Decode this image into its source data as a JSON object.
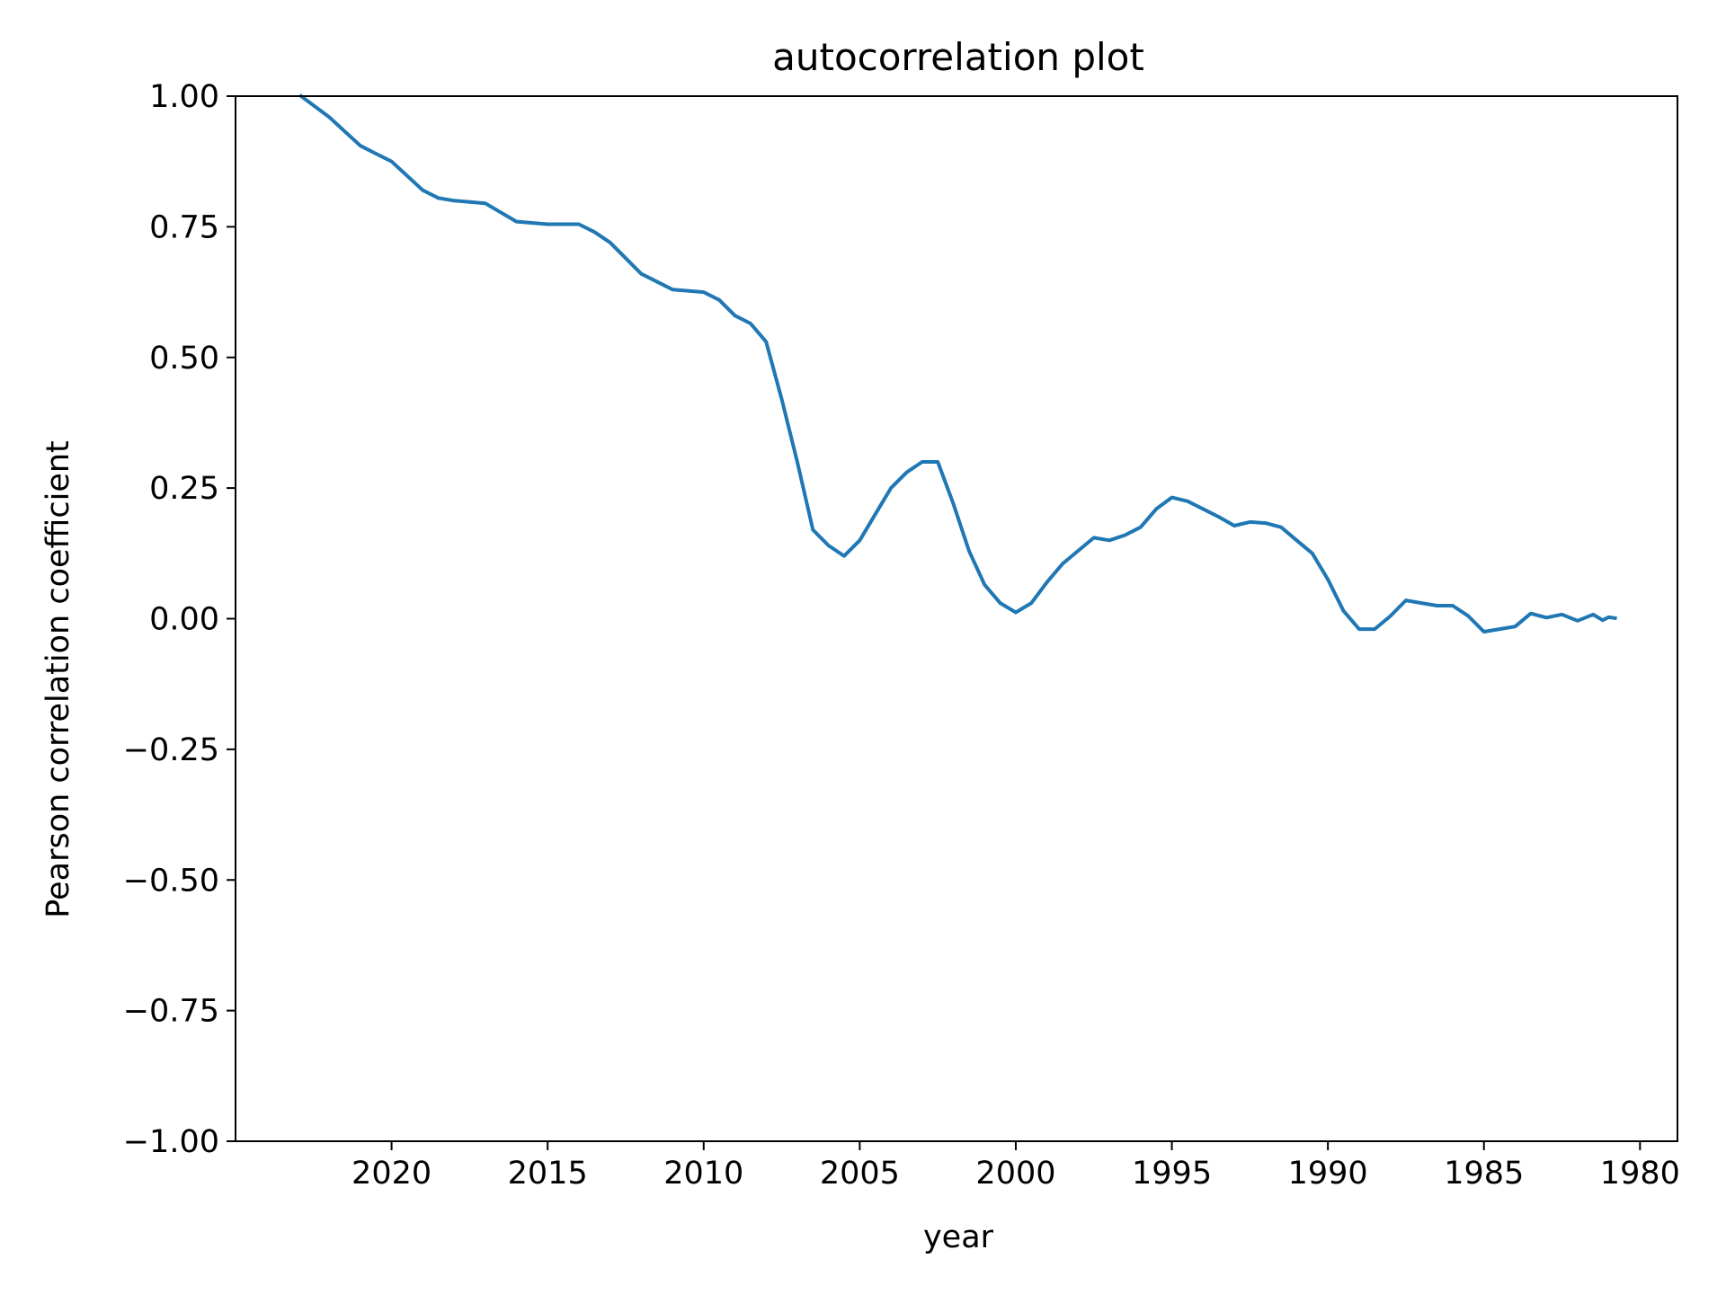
{
  "chart_data": {
    "type": "line",
    "title": "autocorrelation plot",
    "xlabel": "year",
    "ylabel": "Pearson correlation coefficient",
    "x_inverted": true,
    "xlim": [
      2025.0,
      1978.8
    ],
    "ylim": [
      -1.0,
      1.0
    ],
    "x_ticks": [
      2020,
      2015,
      2010,
      2005,
      2000,
      1995,
      1990,
      1985,
      1980
    ],
    "y_ticks": [
      1.0,
      0.75,
      0.5,
      0.25,
      0.0,
      -0.25,
      -0.5,
      -0.75,
      -1.0
    ],
    "x_tick_labels": [
      "2020",
      "2015",
      "2010",
      "2005",
      "2000",
      "1995",
      "1990",
      "1985",
      "1980"
    ],
    "y_tick_labels": [
      "1.00",
      "0.75",
      "0.50",
      "0.25",
      "0.00",
      "−0.25",
      "−0.50",
      "−0.75",
      "−1.00"
    ],
    "grid": false,
    "line_color": "#1f77b4",
    "series": [
      {
        "x": [
          2022.9,
          2022.0,
          2021.0,
          2020.5,
          2020.0,
          2019.0,
          2018.5,
          2018.0,
          2017.0,
          2016.0,
          2015.0,
          2014.0,
          2013.5,
          2013.0,
          2012.0,
          2011.0,
          2010.0,
          2009.5,
          2009.0,
          2008.5,
          2008.0,
          2007.5,
          2007.0,
          2006.5,
          2006.0,
          2005.5,
          2005.0,
          2004.5,
          2004.0,
          2003.5,
          2003.0,
          2002.5,
          2002.0,
          2001.5,
          2001.0,
          2000.5,
          2000.0,
          1999.5,
          1999.0,
          1998.5,
          1998.0,
          1997.5,
          1997.0,
          1996.5,
          1996.0,
          1995.5,
          1995.0,
          1994.5,
          1994.0,
          1993.5,
          1993.0,
          1992.5,
          1992.0,
          1991.5,
          1991.0,
          1990.5,
          1990.0,
          1989.5,
          1989.0,
          1988.5,
          1988.0,
          1987.5,
          1987.0,
          1986.5,
          1986.0,
          1985.5,
          1985.0,
          1984.5,
          1984.0,
          1983.5,
          1983.0,
          1982.5,
          1982.0,
          1981.5,
          1981.2,
          1981.0,
          1980.8
        ],
        "y": [
          1.0,
          0.96,
          0.905,
          0.89,
          0.875,
          0.82,
          0.805,
          0.8,
          0.795,
          0.76,
          0.755,
          0.755,
          0.74,
          0.72,
          0.66,
          0.63,
          0.625,
          0.61,
          0.58,
          0.565,
          0.53,
          0.42,
          0.3,
          0.17,
          0.14,
          0.12,
          0.15,
          0.2,
          0.25,
          0.28,
          0.3,
          0.3,
          0.22,
          0.13,
          0.065,
          0.03,
          0.012,
          0.03,
          0.07,
          0.105,
          0.13,
          0.155,
          0.15,
          0.16,
          0.175,
          0.21,
          0.232,
          0.225,
          0.21,
          0.195,
          0.178,
          0.185,
          0.183,
          0.175,
          0.15,
          0.125,
          0.075,
          0.015,
          -0.02,
          -0.02,
          0.005,
          0.035,
          0.03,
          0.025,
          0.025,
          0.005,
          -0.025,
          -0.02,
          -0.015,
          0.01,
          0.002,
          0.008,
          -0.004,
          0.008,
          -0.003,
          0.003,
          0.001
        ]
      }
    ]
  }
}
